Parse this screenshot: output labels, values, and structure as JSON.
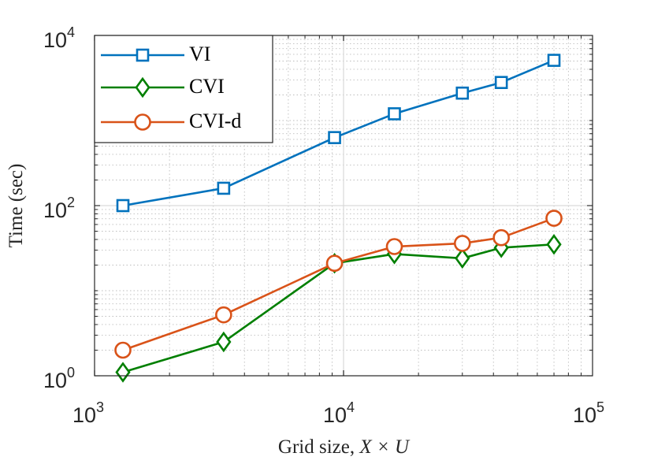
{
  "chart_data": {
    "type": "line",
    "xscale": "log",
    "yscale": "log",
    "xlim": [
      1000,
      100000
    ],
    "ylim": [
      1,
      10000
    ],
    "xlabel_prefix": "Grid size, ",
    "xlabel_math": "X × U",
    "ylabel": "Time (sec)",
    "grid": true,
    "legend_position": "top-left",
    "x_ticks": [
      {
        "value": 1000,
        "base": "10",
        "exp": "3"
      },
      {
        "value": 10000,
        "base": "10",
        "exp": "4"
      },
      {
        "value": 100000,
        "base": "10",
        "exp": "5"
      }
    ],
    "y_ticks": [
      {
        "value": 1,
        "base": "10",
        "exp": "0"
      },
      {
        "value": 100,
        "base": "10",
        "exp": "2"
      },
      {
        "value": 10000,
        "base": "10",
        "exp": "4"
      }
    ],
    "series": [
      {
        "name": "VI",
        "color": "#0072BD",
        "marker": "square",
        "x": [
          1300,
          3300,
          9200,
          16000,
          30000,
          43000,
          70000
        ],
        "y": [
          100,
          160,
          630,
          1200,
          2100,
          2800,
          5100
        ]
      },
      {
        "name": "CVI",
        "color": "#007F00",
        "marker": "diamond",
        "x": [
          1300,
          3300,
          9200,
          16000,
          30000,
          43000,
          70000
        ],
        "y": [
          1.1,
          2.5,
          21,
          27,
          24,
          32,
          35
        ]
      },
      {
        "name": "CVI-d",
        "color": "#D95319",
        "marker": "circle",
        "x": [
          1300,
          3300,
          9200,
          16000,
          30000,
          43000,
          70000
        ],
        "y": [
          2,
          5.2,
          21,
          33,
          36,
          42,
          71
        ]
      }
    ]
  }
}
